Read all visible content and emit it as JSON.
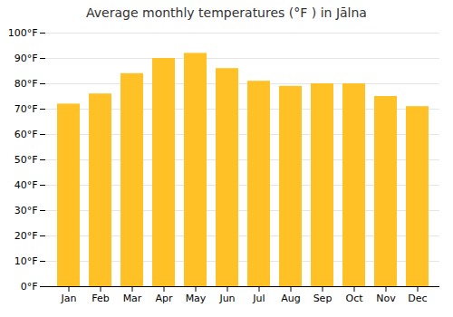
{
  "chart_data": {
    "type": "bar",
    "title": "Average monthly temperatures (°F ) in Jālna",
    "categories": [
      "Jan",
      "Feb",
      "Mar",
      "Apr",
      "May",
      "Jun",
      "Jul",
      "Aug",
      "Sep",
      "Oct",
      "Nov",
      "Dec"
    ],
    "values": [
      72,
      76,
      84,
      90,
      92,
      86,
      81,
      79,
      80,
      80,
      75,
      71
    ],
    "color": "#FFC125",
    "ylim": [
      0,
      100
    ],
    "yticks": [
      {
        "value": 0,
        "label": "0°F"
      },
      {
        "value": 10,
        "label": "10°F"
      },
      {
        "value": 20,
        "label": "20°F"
      },
      {
        "value": 30,
        "label": "30°F"
      },
      {
        "value": 40,
        "label": "40°F"
      },
      {
        "value": 50,
        "label": "50°F"
      },
      {
        "value": 60,
        "label": "60°F"
      },
      {
        "value": 70,
        "label": "70°F"
      },
      {
        "value": 80,
        "label": "80°F"
      },
      {
        "value": 90,
        "label": "90°F"
      },
      {
        "value": 100,
        "label": "100°F"
      }
    ],
    "grid": true
  }
}
